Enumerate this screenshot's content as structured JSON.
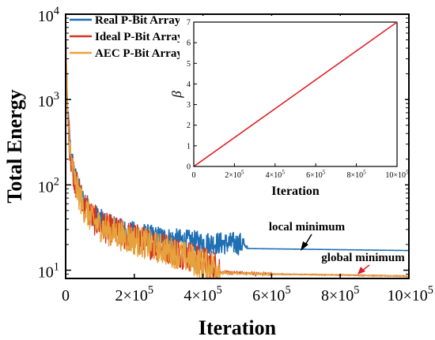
{
  "chart_data": [
    {
      "type": "line",
      "xlabel": "Iteration",
      "ylabel": "Total Energy",
      "y_scale": "log",
      "xlim": [
        0,
        1000000
      ],
      "ylim": [
        8,
        10000
      ],
      "grid": false,
      "legend_position": "top-left",
      "x_ticks": [
        {
          "value": 0,
          "mant": "0",
          "exp": ""
        },
        {
          "value": 200000,
          "mant": "2×10",
          "exp": "5"
        },
        {
          "value": 400000,
          "mant": "4×10",
          "exp": "5"
        },
        {
          "value": 600000,
          "mant": "6×10",
          "exp": "5"
        },
        {
          "value": 800000,
          "mant": "8×10",
          "exp": "5"
        },
        {
          "value": 1000000,
          "mant": "10×10",
          "exp": "5"
        }
      ],
      "y_ticks": [
        {
          "value": 10,
          "mant": "10",
          "exp": "1"
        },
        {
          "value": 100,
          "mant": "10",
          "exp": "2"
        },
        {
          "value": 1000,
          "mant": "10",
          "exp": "3"
        },
        {
          "value": 10000,
          "mant": "10",
          "exp": "4"
        }
      ],
      "series": [
        {
          "name": "Real P-Bit Array",
          "color": "#1f6fb5",
          "x": [
            0,
            5000,
            15000,
            30000,
            50000,
            80000,
            120000,
            180000,
            250000,
            320000,
            400000,
            500000,
            1000000
          ],
          "y": [
            4500,
            700,
            200,
            100,
            60,
            40,
            30,
            25,
            22,
            20,
            18.5,
            18,
            17
          ]
        },
        {
          "name": "Ideal P-Bit Array",
          "color": "#d6331f",
          "x": [
            0,
            5000,
            15000,
            30000,
            50000,
            80000,
            120000,
            180000,
            250000,
            320000,
            380000,
            450000,
            600000,
            800000,
            1000000
          ],
          "y": [
            4500,
            650,
            180,
            90,
            55,
            35,
            27,
            22,
            18,
            15,
            12,
            9.5,
            9,
            8.8,
            8.5
          ]
        },
        {
          "name": "AEC P-Bit Array",
          "color": "#e6a23c",
          "x": [
            0,
            5000,
            15000,
            30000,
            50000,
            80000,
            120000,
            180000,
            250000,
            320000,
            380000,
            450000,
            600000,
            800000,
            1000000
          ],
          "y": [
            4500,
            600,
            170,
            85,
            50,
            33,
            26,
            21,
            17,
            14,
            11,
            9.3,
            9,
            8.8,
            8.5
          ]
        }
      ],
      "annotations": [
        {
          "text": "local minimum",
          "color": "#000000",
          "x": 690000,
          "y": 17
        },
        {
          "text": "global minimum",
          "color": "#e0202a",
          "x": 860000,
          "y": 8.7
        }
      ]
    },
    {
      "type": "line",
      "xlabel": "Iteration",
      "ylabel": "β",
      "xlim": [
        0,
        1000000
      ],
      "ylim": [
        0,
        7
      ],
      "x_ticks": [
        {
          "value": 0,
          "mant": "0",
          "exp": ""
        },
        {
          "value": 200000,
          "mant": "2×10",
          "exp": "5"
        },
        {
          "value": 400000,
          "mant": "4×10",
          "exp": "5"
        },
        {
          "value": 600000,
          "mant": "6×10",
          "exp": "5"
        },
        {
          "value": 800000,
          "mant": "8×10",
          "exp": "5"
        },
        {
          "value": 1000000,
          "mant": "10×10",
          "exp": "5"
        }
      ],
      "y_ticks": [
        0,
        1,
        2,
        3,
        4,
        5,
        6,
        7
      ],
      "series": [
        {
          "color": "#e0202a",
          "x": [
            0,
            1000000
          ],
          "y": [
            0,
            7
          ]
        }
      ]
    }
  ]
}
